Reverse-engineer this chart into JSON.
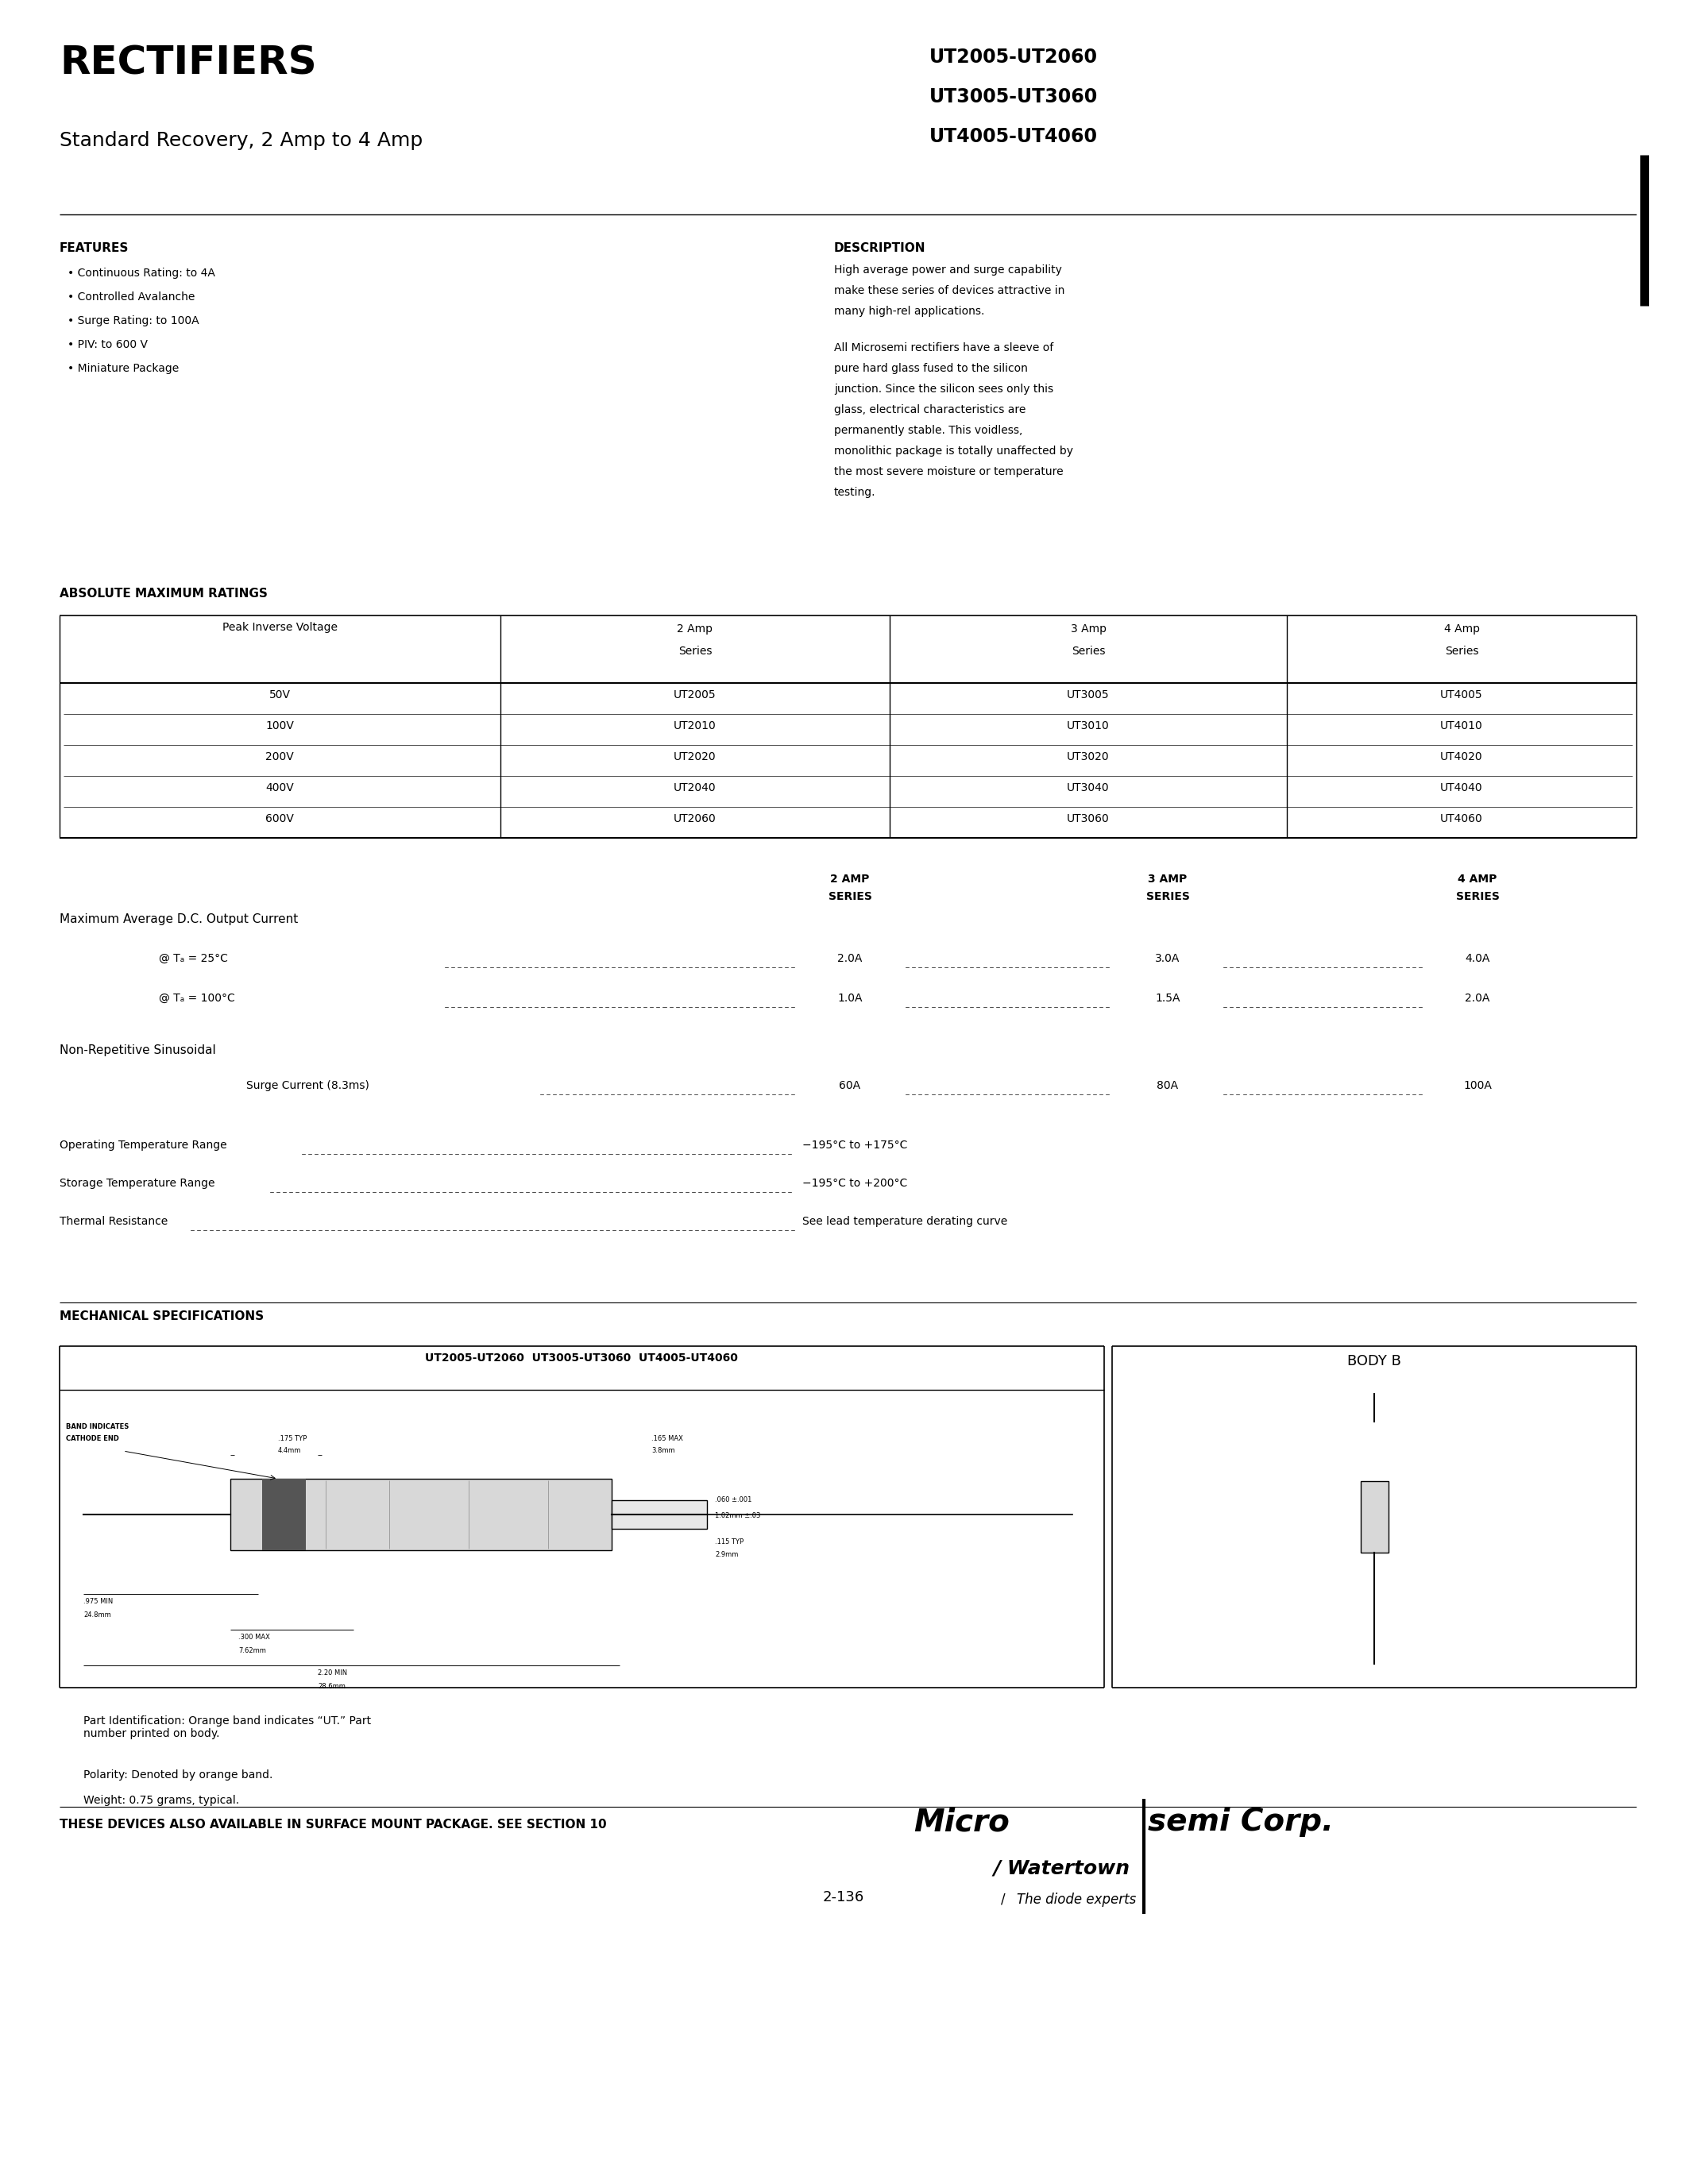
{
  "page_title": "RECTIFIERS",
  "page_subtitle": "Standard Recovery, 2 Amp to 4 Amp",
  "part_numbers": [
    "UT2005-UT2060",
    "UT3005-UT3060",
    "UT4005-UT4060"
  ],
  "features_title": "FEATURES",
  "features": [
    "Continuous Rating: to 4A",
    "Controlled Avalanche",
    "Surge Rating: to 100A",
    "PIV: to 600 V",
    "Miniature Package"
  ],
  "description_title": "DESCRIPTION",
  "description_text": [
    "High average power and surge capability",
    "make these series of devices attractive in",
    "many high-rel applications.",
    "",
    "All Microsemi rectifiers have a sleeve of",
    "pure hard glass fused to the silicon",
    "junction. Since the silicon sees only this",
    "glass, electrical characteristics are",
    "permanently stable. This voidless,",
    "monolithic package is totally unaffected by",
    "the most severe moisture or temperature",
    "testing."
  ],
  "ratings_title": "ABSOLUTE MAXIMUM RATINGS",
  "table_headers": [
    "Peak Inverse Voltage",
    "2 Amp\nSeries",
    "3 Amp\nSeries",
    "4 Amp\nSeries"
  ],
  "table_rows": [
    [
      "50V",
      "UT2005",
      "UT3005",
      "UT4005"
    ],
    [
      "100V",
      "UT2010",
      "UT3010",
      "UT4010"
    ],
    [
      "200V",
      "UT2020",
      "UT3020",
      "UT4020"
    ],
    [
      "400V",
      "UT2040",
      "UT3040",
      "UT4040"
    ],
    [
      "600V",
      "UT2060",
      "UT3060",
      "UT4060"
    ]
  ],
  "specs_label": "Maximum Average D.C. Output Current",
  "specs_col1": "2 AMP\nSERIES",
  "specs_col2": "3 AMP\nSERIES",
  "specs_col3": "4 AMP\nSERIES",
  "spec_rows": [
    [
      "@ Tₐ = 25°C",
      "2.0A",
      "3.0A",
      "4.0A"
    ],
    [
      "@ Tₐ = 100°C",
      "1.0A",
      "1.5A",
      "2.0A"
    ]
  ],
  "surge_label": "Non-Repetitive Sinusoidal",
  "surge_row": [
    "Surge Current (8.3ms)",
    "60A",
    "80A",
    "100A"
  ],
  "op_temp": "Operating Temperature Range",
  "op_temp_val": "−195°C to +175°C",
  "stor_temp": "Storage Temperature Range",
  "stor_temp_val": "−195°C to +200°C",
  "thermal": "Thermal Resistance",
  "thermal_val": "See lead temperature derating curve",
  "mech_title": "MECHANICAL SPECIFICATIONS",
  "body_b_label": "BODY B",
  "part_id_text": "Part Identification: Orange band indicates “UT.” Part\nnumber printed on body.",
  "polarity_text": "Polarity: Denoted by orange band.",
  "weight_text": "Weight: 0.75 grams, typical.",
  "surface_mount_text": "THESE DEVICES ALSO AVAILABLE IN SURFACE MOUNT PACKAGE. SEE SECTION 10",
  "page_num": "2-136",
  "bg_color": "#ffffff",
  "text_color": "#000000",
  "line_color": "#000000"
}
